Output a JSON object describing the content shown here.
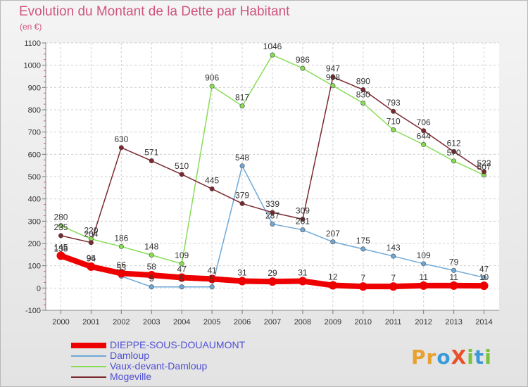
{
  "title": "Evolution du Montant de la Dette par Habitant",
  "subtitle": "(en €)",
  "logo": {
    "text": "ProXiti",
    "letters": [
      {
        "ch": "P",
        "color": "#e8a030"
      },
      {
        "ch": "r",
        "color": "#e8a030"
      },
      {
        "ch": "o",
        "color": "#3a9ad9"
      },
      {
        "ch": "X",
        "color": "#e8502a"
      },
      {
        "ch": "i",
        "color": "#7cc23b"
      },
      {
        "ch": "t",
        "color": "#3a9ad9"
      },
      {
        "ch": "i",
        "color": "#7cc23b"
      }
    ]
  },
  "chart_data": {
    "type": "line",
    "x": [
      "2000",
      "2001",
      "2002",
      "2003",
      "2004",
      "2005",
      "2006",
      "2007",
      "2008",
      "2009",
      "2010",
      "2011",
      "2012",
      "2013",
      "2014"
    ],
    "ylim": [
      -100,
      1100
    ],
    "yticks": [
      -100,
      0,
      100,
      200,
      300,
      400,
      500,
      600,
      700,
      800,
      900,
      1000,
      1100
    ],
    "grid": true,
    "legend_position": "bottom-left",
    "series": [
      {
        "name": "DIEPPE-SOUS-DOUAUMONT",
        "color": "#ee0000",
        "width": 8,
        "values": [
          145,
          96,
          66,
          58,
          47,
          41,
          31,
          29,
          31,
          12,
          7,
          7,
          11,
          11,
          10
        ]
      },
      {
        "name": "Damloup",
        "color": "#6fa8d6",
        "width": 1.5,
        "values": [
          138,
          94,
          53,
          5,
          5,
          5,
          548,
          287,
          261,
          207,
          175,
          143,
          109,
          79,
          47
        ]
      },
      {
        "name": "Vaux-devant-Damloup",
        "color": "#88dd55",
        "width": 1.5,
        "values": [
          280,
          220,
          186,
          148,
          109,
          906,
          817,
          1046,
          986,
          908,
          830,
          710,
          644,
          570,
          507
        ]
      },
      {
        "name": "Mogeville",
        "color": "#7b2830",
        "width": 1.5,
        "values": [
          235,
          204,
          630,
          571,
          510,
          445,
          379,
          339,
          309,
          947,
          890,
          793,
          706,
          612,
          522
        ]
      }
    ]
  }
}
